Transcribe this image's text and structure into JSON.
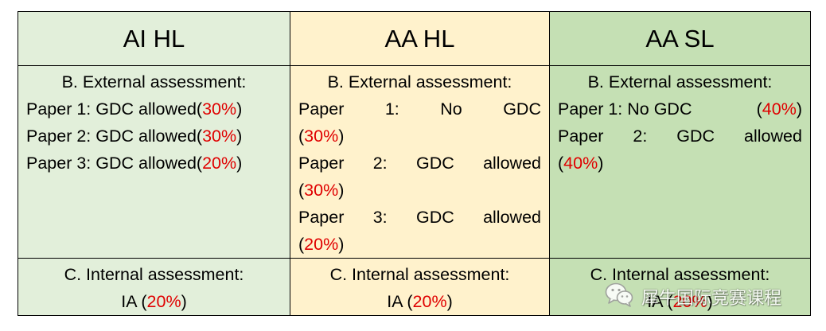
{
  "headers": {
    "ai_hl": "AI HL",
    "aa_hl": "AA HL",
    "aa_sl": "AA SL"
  },
  "external": {
    "ai_hl": {
      "title": "B.   External assessment:",
      "papers": [
        {
          "label": "Paper 1: GDC allowed",
          "open": "(",
          "pct": "30%",
          "close": ")"
        },
        {
          "label": "Paper 2: GDC allowed",
          "open": "(",
          "pct": "30%",
          "close": ")"
        },
        {
          "label": "Paper 3: GDC allowed",
          "open": "(",
          "pct": "20%",
          "close": ")"
        }
      ]
    },
    "aa_hl": {
      "title": "B.   External assessment:",
      "paper1_words": [
        "Paper",
        "1:",
        "No",
        "GDC"
      ],
      "paper1_pct": "30%",
      "paper2_words": [
        "Paper",
        "2:",
        "GDC",
        "allowed"
      ],
      "paper2_pct": "30%",
      "paper3_words": [
        "Paper",
        "3:",
        "GDC",
        "allowed"
      ],
      "paper3_pct": "20%"
    },
    "aa_sl": {
      "title": "B.   External assessment:",
      "paper1_label": "Paper 1: No GDC",
      "paper1_pct": "40%",
      "paper2_words": [
        "Paper",
        "2:",
        "GDC",
        "allowed"
      ],
      "paper2_pct": "40%"
    }
  },
  "internal": {
    "ai_hl": {
      "title": "C.   Internal assessment:",
      "label": "IA ",
      "pct": "20%"
    },
    "aa_hl": {
      "title": "C.   Internal assessment:",
      "label": "IA ",
      "pct": "20%"
    },
    "aa_sl": {
      "title": "C.   Internal assessment:",
      "label": "IA ",
      "pct": "20%"
    }
  },
  "watermark": {
    "icon": "wechat-icon",
    "text": "犀牛国际竞赛课程"
  },
  "colors": {
    "ai_hl_bg": "#e2efda",
    "aa_hl_bg": "#fff2cc",
    "aa_sl_bg": "#c5e0b4",
    "percent": "#e00000"
  }
}
